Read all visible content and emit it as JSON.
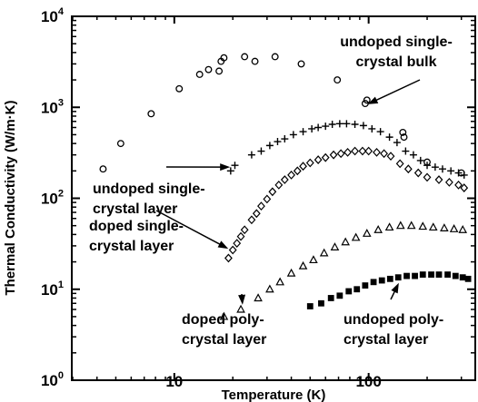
{
  "chart_data": {
    "type": "scatter",
    "xscale": "log",
    "yscale": "log",
    "xlim": [
      3,
      350
    ],
    "ylim": [
      1,
      10000
    ],
    "xlabel": "Temperature (K)",
    "ylabel": "Thermal Conductivity (W/m·K)",
    "x_ticks": [
      {
        "value": 10,
        "label": "10"
      },
      {
        "value": 100,
        "label": "100"
      }
    ],
    "y_ticks": [
      {
        "value": 1,
        "base": "10",
        "exp": "0"
      },
      {
        "value": 10,
        "base": "10",
        "exp": "1"
      },
      {
        "value": 100,
        "base": "10",
        "exp": "2"
      },
      {
        "value": 1000,
        "base": "10",
        "exp": "3"
      },
      {
        "value": 10000,
        "base": "10",
        "exp": "4"
      }
    ],
    "grid": false,
    "series": [
      {
        "marker": "circle",
        "points": [
          [
            4.3,
            210
          ],
          [
            5.3,
            400
          ],
          [
            7.6,
            850
          ],
          [
            10.6,
            1600
          ],
          [
            13.5,
            2300
          ],
          [
            15,
            2600
          ],
          [
            17,
            2500
          ],
          [
            17.4,
            3200
          ],
          [
            18,
            3500
          ],
          [
            23,
            3600
          ],
          [
            26,
            3200
          ],
          [
            33,
            3600
          ],
          [
            45,
            3000
          ],
          [
            69,
            2000
          ],
          [
            96,
            1100
          ],
          [
            98,
            1200
          ],
          [
            150,
            530
          ],
          [
            152,
            470
          ],
          [
            200,
            250
          ],
          [
            300,
            190
          ]
        ]
      },
      {
        "marker": "plus",
        "points": [
          [
            19.5,
            200
          ],
          [
            20.5,
            230
          ],
          [
            25,
            300
          ],
          [
            28,
            330
          ],
          [
            31,
            380
          ],
          [
            34,
            420
          ],
          [
            37,
            450
          ],
          [
            41,
            500
          ],
          [
            46,
            540
          ],
          [
            51,
            580
          ],
          [
            55,
            600
          ],
          [
            60,
            620
          ],
          [
            65,
            650
          ],
          [
            71,
            660
          ],
          [
            77,
            660
          ],
          [
            85,
            650
          ],
          [
            94,
            630
          ],
          [
            104,
            580
          ],
          [
            115,
            540
          ],
          [
            128,
            470
          ],
          [
            140,
            410
          ],
          [
            155,
            330
          ],
          [
            170,
            300
          ],
          [
            185,
            260
          ],
          [
            200,
            230
          ],
          [
            220,
            220
          ],
          [
            240,
            210
          ],
          [
            265,
            200
          ],
          [
            290,
            190
          ],
          [
            310,
            180
          ]
        ]
      },
      {
        "marker": "diamond",
        "points": [
          [
            19,
            22
          ],
          [
            20,
            27
          ],
          [
            21,
            32
          ],
          [
            22,
            38
          ],
          [
            23,
            45
          ],
          [
            25,
            58
          ],
          [
            26.5,
            68
          ],
          [
            28,
            82
          ],
          [
            30,
            98
          ],
          [
            32,
            118
          ],
          [
            34.5,
            140
          ],
          [
            37,
            160
          ],
          [
            40,
            180
          ],
          [
            43,
            200
          ],
          [
            46,
            225
          ],
          [
            50,
            245
          ],
          [
            55,
            265
          ],
          [
            60,
            280
          ],
          [
            66,
            300
          ],
          [
            72,
            310
          ],
          [
            78,
            320
          ],
          [
            85,
            330
          ],
          [
            93,
            330
          ],
          [
            100,
            330
          ],
          [
            110,
            320
          ],
          [
            120,
            310
          ],
          [
            130,
            290
          ],
          [
            145,
            240
          ],
          [
            160,
            210
          ],
          [
            180,
            190
          ],
          [
            200,
            170
          ],
          [
            230,
            160
          ],
          [
            260,
            150
          ],
          [
            290,
            140
          ],
          [
            310,
            130
          ]
        ]
      },
      {
        "marker": "triangle",
        "points": [
          [
            18,
            5
          ],
          [
            22,
            6
          ],
          [
            27,
            8
          ],
          [
            31,
            10
          ],
          [
            35,
            12
          ],
          [
            40,
            15
          ],
          [
            46,
            18
          ],
          [
            52,
            21
          ],
          [
            59,
            25
          ],
          [
            67,
            29
          ],
          [
            76,
            33
          ],
          [
            86,
            37
          ],
          [
            98,
            41
          ],
          [
            112,
            45
          ],
          [
            128,
            48
          ],
          [
            146,
            50
          ],
          [
            166,
            50
          ],
          [
            190,
            49
          ],
          [
            215,
            48
          ],
          [
            245,
            47
          ],
          [
            275,
            46
          ],
          [
            305,
            45
          ]
        ]
      },
      {
        "marker": "square",
        "points": [
          [
            50,
            6.5
          ],
          [
            57,
            7
          ],
          [
            64,
            8
          ],
          [
            71,
            8.5
          ],
          [
            79,
            9.5
          ],
          [
            87,
            10
          ],
          [
            96,
            11
          ],
          [
            106,
            12
          ],
          [
            117,
            12.5
          ],
          [
            129,
            13
          ],
          [
            142,
            13.5
          ],
          [
            157,
            14
          ],
          [
            173,
            14
          ],
          [
            190,
            14.5
          ],
          [
            210,
            14.5
          ],
          [
            230,
            14.5
          ],
          [
            255,
            14.5
          ],
          [
            280,
            14
          ],
          [
            305,
            13.5
          ],
          [
            325,
            13
          ]
        ]
      }
    ],
    "annotations": [
      {
        "lines": [
          "undoped single-",
          "crystal bulk"
        ],
        "arrow_to": [
          96,
          1050
        ]
      },
      {
        "lines": [
          "undoped single-",
          "crystal layer"
        ],
        "arrow_to": [
          20,
          220
        ]
      },
      {
        "lines": [
          "doped single-",
          "crystal layer"
        ],
        "arrow_to": [
          19.5,
          27
        ]
      },
      {
        "lines": [
          "doped poly-",
          "crystal layer"
        ],
        "arrow_to": [
          22.5,
          6.3
        ]
      },
      {
        "lines": [
          "undoped poly-",
          "crystal layer"
        ],
        "arrow_to": [
          145,
          12.5
        ]
      }
    ]
  }
}
